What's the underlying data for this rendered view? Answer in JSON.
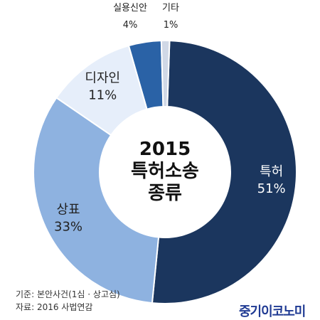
{
  "chart_data": {
    "type": "pie",
    "donut": true,
    "title": "2015 특허소송 종류",
    "categories": [
      "특허",
      "상표",
      "디자인",
      "실용신안",
      "기타"
    ],
    "values": [
      51,
      33,
      11,
      4,
      1
    ],
    "value_labels": [
      "51%",
      "33%",
      "11%",
      "4%",
      "1%"
    ],
    "colors": [
      "#1b365e",
      "#8eb2e0",
      "#e6eefa",
      "#2a62a6",
      "#d0d8e6"
    ],
    "legend": "none"
  },
  "center": {
    "line1": "2015",
    "line2": "특허소송",
    "line3": "종류"
  },
  "footer": {
    "basis": "기준: 본안사건(1심 · 상고심)",
    "source": "자료: 2016 사법연감",
    "brand": "중기이코노미"
  }
}
